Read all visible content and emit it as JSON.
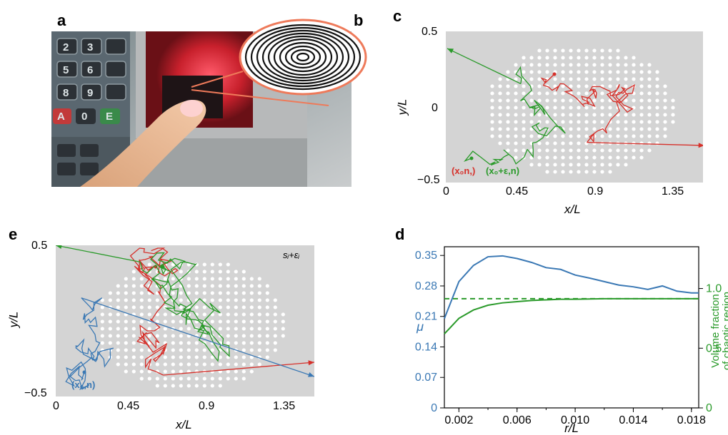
{
  "panels": {
    "a": {
      "letter": "a"
    },
    "b": {
      "letter": "b"
    },
    "c": {
      "letter": "c",
      "xlabel": "x/L",
      "ylabel": "y/L",
      "xticks": [
        "0",
        "0.45",
        "0.9",
        "1.35"
      ],
      "yticks": [
        "0.5",
        "0",
        "−0.5"
      ],
      "legend_red": "(x₀n,)",
      "legend_green": "(x₀+ε,n)"
    },
    "e": {
      "letter": "e",
      "xlabel": "x/L",
      "ylabel": "y/L",
      "xticks": [
        "0",
        "0.45",
        "0.9",
        "1.35"
      ],
      "yticks": [
        "0.5",
        "−0.5"
      ],
      "legend_blue": "(x₀,n)",
      "annotation": "sᵢ+εᵢ"
    },
    "d": {
      "letter": "d"
    }
  },
  "colors": {
    "red": "#d6302a",
    "green": "#2a9a2a",
    "blue": "#3a78b4",
    "panel_bg": "#d4d4d4"
  },
  "chart_data": {
    "type": "line",
    "xlabel": "r/L",
    "ylabel_left": "μ",
    "ylabel_right_line1": "Volume fraction",
    "ylabel_right_line2": "of chaotic region",
    "xlim": [
      0.001,
      0.0185
    ],
    "ylim_left": [
      0,
      0.37
    ],
    "ylim_right": [
      0,
      1.35
    ],
    "xticks": [
      "0.002",
      "0.006",
      "0.010",
      "0.014",
      "0.018"
    ],
    "yticks_left": [
      "0",
      "0.07",
      "0.14",
      "0.21",
      "0.28",
      "0.35"
    ],
    "yticks_right": [
      "0",
      "0.5",
      "1.0"
    ],
    "series": [
      {
        "axis": "left",
        "x": [
          0.001,
          0.002,
          0.003,
          0.004,
          0.005,
          0.006,
          0.007,
          0.008,
          0.009,
          0.01,
          0.011,
          0.012,
          0.013,
          0.014,
          0.015,
          0.016,
          0.017,
          0.018,
          0.0185
        ],
        "values": [
          0.205,
          0.29,
          0.327,
          0.347,
          0.349,
          0.343,
          0.334,
          0.322,
          0.318,
          0.305,
          0.298,
          0.29,
          0.282,
          0.278,
          0.272,
          0.28,
          0.268,
          0.264,
          0.264
        ]
      },
      {
        "axis": "right",
        "x": [
          0.001,
          0.002,
          0.003,
          0.004,
          0.005,
          0.006,
          0.007,
          0.008,
          0.009,
          0.01,
          0.012,
          0.014,
          0.016,
          0.018,
          0.0185
        ],
        "values": [
          0.62,
          0.75,
          0.82,
          0.86,
          0.88,
          0.89,
          0.9,
          0.905,
          0.91,
          0.91,
          0.915,
          0.915,
          0.915,
          0.915,
          0.915
        ]
      },
      {
        "axis": "right",
        "style": "dashed",
        "x": [
          0.001,
          0.0185
        ],
        "values": [
          0.915,
          0.915
        ]
      }
    ]
  }
}
